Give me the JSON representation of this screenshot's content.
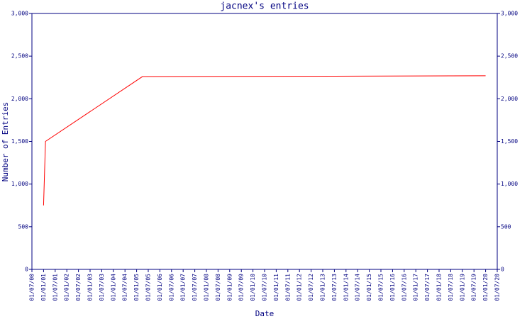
{
  "chart_data": {
    "type": "line",
    "title": "jacnex's entries",
    "ylabel": "Number of Entries",
    "xlabel": "Date",
    "x": [
      "01/01/01",
      "01/02/01",
      "01/04/05",
      "01/07/13",
      "01/01/20"
    ],
    "series": [
      {
        "name": "entries",
        "color": "#ff0000",
        "values": [
          750,
          1500,
          2260,
          2265,
          2270
        ]
      }
    ],
    "xlim": [
      "01/07/00",
      "01/07/20"
    ],
    "xticks": [
      "01/07/00",
      "01/01/01",
      "01/07/01",
      "01/01/02",
      "01/07/02",
      "01/01/03",
      "01/07/03",
      "01/01/04",
      "01/07/04",
      "01/01/05",
      "01/07/05",
      "01/01/06",
      "01/07/06",
      "01/01/07",
      "01/07/07",
      "01/01/08",
      "01/07/08",
      "01/01/09",
      "01/07/09",
      "01/01/10",
      "01/07/10",
      "01/01/11",
      "01/07/11",
      "01/01/12",
      "01/07/12",
      "01/01/13",
      "01/07/13",
      "01/01/14",
      "01/07/14",
      "01/01/15",
      "01/07/15",
      "01/01/16",
      "01/07/16",
      "01/01/17",
      "01/07/17",
      "01/01/18",
      "01/07/18",
      "01/01/19",
      "01/07/19",
      "01/01/20",
      "01/07/20"
    ],
    "ylim": [
      0,
      3000
    ],
    "yticks": [
      0,
      500,
      {
        "value": 1000,
        "label": "1,000"
      },
      {
        "value": 1500,
        "label": "1,500"
      },
      {
        "value": 2000,
        "label": "2,000"
      },
      {
        "value": 2500,
        "label": "2,500"
      },
      {
        "value": 3000,
        "label": "3,000"
      }
    ],
    "right_axis": true,
    "axis_color": "#000080"
  }
}
